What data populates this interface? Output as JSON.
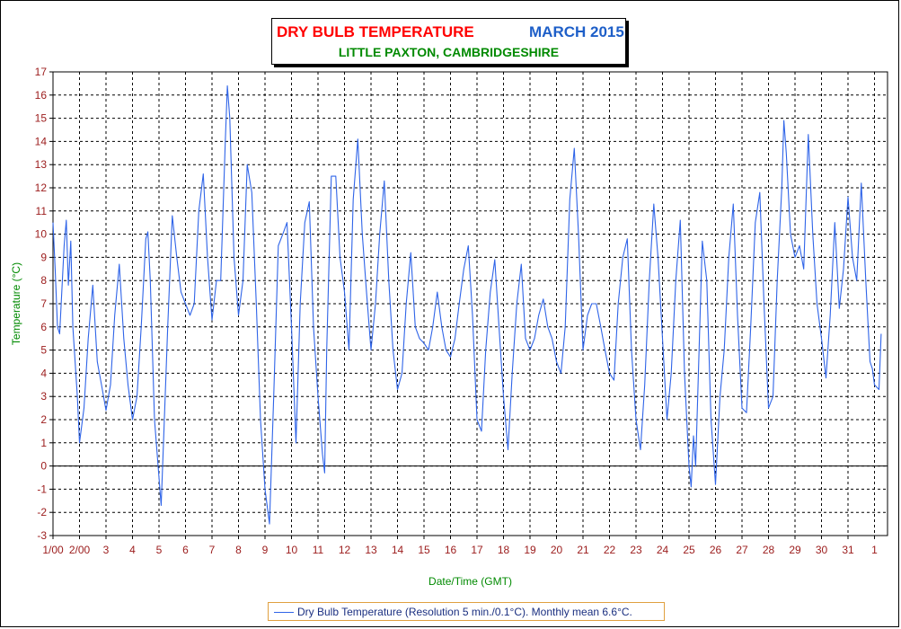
{
  "title": {
    "main": "DRY BULB TEMPERATURE",
    "month": "MARCH 2015",
    "location": "LITTLE PAXTON, CAMBRIDGESHIRE"
  },
  "legend": {
    "label": "Dry Bulb Temperature (Resolution 5 min./0.1°C). Monthly mean 6.6°C."
  },
  "colors": {
    "series": "#2f64e8",
    "title_main": "#ff0000",
    "title_month": "#1e5fc8",
    "title_location": "#008a00",
    "tick_labels": "#9b1b1b",
    "axis_labels": "#008a00",
    "legend_border": "#e0a040"
  },
  "chart_data": {
    "type": "line",
    "title": "DRY BULB TEMPERATURE    MARCH 2015",
    "subtitle": "LITTLE PAXTON, CAMBRIDGESHIRE",
    "xlabel": "Date/Time (GMT)",
    "ylabel": "Temperature (°C)",
    "ylim": [
      -3,
      17
    ],
    "xlim": [
      1,
      32
    ],
    "yticks": [
      -3,
      -2,
      -1,
      0,
      1,
      2,
      3,
      4,
      5,
      6,
      7,
      8,
      9,
      10,
      11,
      12,
      13,
      14,
      15,
      16,
      17
    ],
    "xticks": [
      {
        "x": 1,
        "label": "1/00"
      },
      {
        "x": 2,
        "label": "2/00"
      },
      {
        "x": 3,
        "label": "3"
      },
      {
        "x": 4,
        "label": "4"
      },
      {
        "x": 5,
        "label": "5"
      },
      {
        "x": 6,
        "label": "6"
      },
      {
        "x": 7,
        "label": "7"
      },
      {
        "x": 8,
        "label": "8"
      },
      {
        "x": 9,
        "label": "9"
      },
      {
        "x": 10,
        "label": "10"
      },
      {
        "x": 11,
        "label": "11"
      },
      {
        "x": 12,
        "label": "12"
      },
      {
        "x": 13,
        "label": "13"
      },
      {
        "x": 14,
        "label": "14"
      },
      {
        "x": 15,
        "label": "15"
      },
      {
        "x": 16,
        "label": "16"
      },
      {
        "x": 17,
        "label": "17"
      },
      {
        "x": 18,
        "label": "18"
      },
      {
        "x": 19,
        "label": "19"
      },
      {
        "x": 20,
        "label": "20"
      },
      {
        "x": 21,
        "label": "21"
      },
      {
        "x": 22,
        "label": "22"
      },
      {
        "x": 23,
        "label": "23"
      },
      {
        "x": 24,
        "label": "24"
      },
      {
        "x": 25,
        "label": "25"
      },
      {
        "x": 26,
        "label": "26"
      },
      {
        "x": 27,
        "label": "27"
      },
      {
        "x": 28,
        "label": "28"
      },
      {
        "x": 29,
        "label": "29"
      },
      {
        "x": 30,
        "label": "30"
      },
      {
        "x": 31,
        "label": "31"
      },
      {
        "x": 32,
        "label": "1"
      }
    ],
    "grid": true,
    "zero_line": true,
    "legend_position": "bottom",
    "series": [
      {
        "name": "Dry Bulb Temperature (Resolution 5 min./0.1°C). Monthly mean 6.6°C.",
        "color": "#2f64e8",
        "points": [
          [
            1.0,
            10.5
          ],
          [
            1.08,
            8.5
          ],
          [
            1.17,
            6.0
          ],
          [
            1.25,
            5.7
          ],
          [
            1.42,
            9.5
          ],
          [
            1.5,
            10.6
          ],
          [
            1.58,
            7.8
          ],
          [
            1.67,
            9.7
          ],
          [
            1.75,
            6.0
          ],
          [
            1.92,
            3.0
          ],
          [
            2.0,
            1.0
          ],
          [
            2.17,
            2.5
          ],
          [
            2.33,
            5.5
          ],
          [
            2.5,
            7.8
          ],
          [
            2.67,
            4.5
          ],
          [
            2.83,
            3.5
          ],
          [
            3.0,
            2.4
          ],
          [
            3.17,
            3.5
          ],
          [
            3.33,
            6.5
          ],
          [
            3.5,
            8.7
          ],
          [
            3.67,
            5.5
          ],
          [
            3.83,
            3.5
          ],
          [
            4.0,
            2.0
          ],
          [
            4.17,
            3.0
          ],
          [
            4.33,
            6.0
          ],
          [
            4.5,
            9.8
          ],
          [
            4.58,
            10.1
          ],
          [
            4.67,
            8.0
          ],
          [
            4.83,
            2.0
          ],
          [
            5.0,
            -0.5
          ],
          [
            5.08,
            -1.7
          ],
          [
            5.17,
            1.0
          ],
          [
            5.33,
            6.0
          ],
          [
            5.5,
            10.8
          ],
          [
            5.67,
            9.0
          ],
          [
            5.83,
            7.5
          ],
          [
            6.0,
            7.0
          ],
          [
            6.17,
            6.5
          ],
          [
            6.33,
            7.0
          ],
          [
            6.5,
            11.0
          ],
          [
            6.67,
            12.6
          ],
          [
            6.83,
            9.0
          ],
          [
            7.0,
            6.3
          ],
          [
            7.17,
            8.0
          ],
          [
            7.33,
            8.0
          ],
          [
            7.5,
            14.0
          ],
          [
            7.58,
            16.4
          ],
          [
            7.67,
            15.0
          ],
          [
            7.83,
            9.0
          ],
          [
            8.0,
            6.5
          ],
          [
            8.17,
            8.0
          ],
          [
            8.33,
            13.0
          ],
          [
            8.5,
            11.8
          ],
          [
            8.67,
            7.0
          ],
          [
            8.83,
            2.0
          ],
          [
            9.0,
            -1.0
          ],
          [
            9.17,
            -2.5
          ],
          [
            9.33,
            3.0
          ],
          [
            9.5,
            9.5
          ],
          [
            9.67,
            10.0
          ],
          [
            9.83,
            10.5
          ],
          [
            10.0,
            6.0
          ],
          [
            10.17,
            1.0
          ],
          [
            10.33,
            7.0
          ],
          [
            10.5,
            10.5
          ],
          [
            10.67,
            11.4
          ],
          [
            10.83,
            6.0
          ],
          [
            11.0,
            3.0
          ],
          [
            11.17,
            0.5
          ],
          [
            11.25,
            -0.3
          ],
          [
            11.33,
            5.0
          ],
          [
            11.5,
            12.5
          ],
          [
            11.67,
            12.5
          ],
          [
            11.83,
            9.0
          ],
          [
            12.0,
            7.5
          ],
          [
            12.17,
            5.0
          ],
          [
            12.33,
            11.5
          ],
          [
            12.5,
            14.1
          ],
          [
            12.67,
            10.0
          ],
          [
            12.83,
            7.5
          ],
          [
            13.0,
            5.0
          ],
          [
            13.17,
            7.0
          ],
          [
            13.33,
            10.0
          ],
          [
            13.5,
            12.3
          ],
          [
            13.67,
            8.0
          ],
          [
            13.83,
            5.0
          ],
          [
            14.0,
            3.3
          ],
          [
            14.17,
            4.0
          ],
          [
            14.33,
            7.0
          ],
          [
            14.5,
            9.2
          ],
          [
            14.67,
            6.0
          ],
          [
            14.83,
            5.5
          ],
          [
            15.0,
            5.3
          ],
          [
            15.17,
            5.0
          ],
          [
            15.33,
            6.0
          ],
          [
            15.5,
            7.5
          ],
          [
            15.67,
            6.0
          ],
          [
            15.83,
            5.0
          ],
          [
            16.0,
            4.7
          ],
          [
            16.17,
            5.5
          ],
          [
            16.33,
            7.0
          ],
          [
            16.5,
            8.5
          ],
          [
            16.67,
            9.5
          ],
          [
            16.83,
            6.5
          ],
          [
            17.0,
            2.0
          ],
          [
            17.17,
            1.5
          ],
          [
            17.33,
            5.0
          ],
          [
            17.5,
            7.5
          ],
          [
            17.67,
            8.9
          ],
          [
            17.83,
            6.0
          ],
          [
            18.0,
            3.0
          ],
          [
            18.17,
            0.7
          ],
          [
            18.33,
            4.0
          ],
          [
            18.5,
            7.0
          ],
          [
            18.67,
            8.7
          ],
          [
            18.83,
            5.5
          ],
          [
            19.0,
            5.0
          ],
          [
            19.17,
            5.5
          ],
          [
            19.33,
            6.5
          ],
          [
            19.5,
            7.2
          ],
          [
            19.67,
            6.0
          ],
          [
            19.83,
            5.5
          ],
          [
            20.0,
            4.5
          ],
          [
            20.17,
            4.0
          ],
          [
            20.33,
            6.0
          ],
          [
            20.5,
            11.5
          ],
          [
            20.67,
            13.7
          ],
          [
            20.83,
            10.0
          ],
          [
            21.0,
            5.0
          ],
          [
            21.17,
            6.5
          ],
          [
            21.33,
            7.0
          ],
          [
            21.5,
            7.0
          ],
          [
            21.67,
            6.0
          ],
          [
            21.83,
            5.0
          ],
          [
            22.0,
            4.0
          ],
          [
            22.17,
            3.7
          ],
          [
            22.33,
            7.0
          ],
          [
            22.5,
            9.0
          ],
          [
            22.67,
            9.8
          ],
          [
            22.83,
            5.0
          ],
          [
            23.0,
            2.0
          ],
          [
            23.17,
            0.7
          ],
          [
            23.33,
            3.5
          ],
          [
            23.5,
            8.0
          ],
          [
            23.67,
            11.3
          ],
          [
            23.83,
            9.0
          ],
          [
            24.0,
            5.5
          ],
          [
            24.17,
            2.0
          ],
          [
            24.33,
            4.0
          ],
          [
            24.5,
            8.0
          ],
          [
            24.67,
            10.6
          ],
          [
            24.83,
            4.0
          ],
          [
            25.0,
            0.0
          ],
          [
            25.08,
            -0.9
          ],
          [
            25.17,
            1.3
          ],
          [
            25.25,
            0.0
          ],
          [
            25.33,
            3.0
          ],
          [
            25.5,
            9.7
          ],
          [
            25.67,
            8.0
          ],
          [
            25.83,
            2.0
          ],
          [
            26.0,
            -0.8
          ],
          [
            26.17,
            3.0
          ],
          [
            26.33,
            5.0
          ],
          [
            26.5,
            9.0
          ],
          [
            26.67,
            11.3
          ],
          [
            26.83,
            6.5
          ],
          [
            27.0,
            2.5
          ],
          [
            27.17,
            2.3
          ],
          [
            27.33,
            6.0
          ],
          [
            27.5,
            10.5
          ],
          [
            27.67,
            11.8
          ],
          [
            27.83,
            7.0
          ],
          [
            28.0,
            2.5
          ],
          [
            28.17,
            3.0
          ],
          [
            28.33,
            8.0
          ],
          [
            28.5,
            12.0
          ],
          [
            28.58,
            14.9
          ],
          [
            28.67,
            13.5
          ],
          [
            28.83,
            10.0
          ],
          [
            29.0,
            9.0
          ],
          [
            29.17,
            9.5
          ],
          [
            29.33,
            8.5
          ],
          [
            29.5,
            14.3
          ],
          [
            29.67,
            10.0
          ],
          [
            29.83,
            7.0
          ],
          [
            30.0,
            5.5
          ],
          [
            30.17,
            3.8
          ],
          [
            30.33,
            6.5
          ],
          [
            30.5,
            10.5
          ],
          [
            30.67,
            6.8
          ],
          [
            30.83,
            8.5
          ],
          [
            31.0,
            11.6
          ],
          [
            31.17,
            9.0
          ],
          [
            31.33,
            8.0
          ],
          [
            31.5,
            12.2
          ],
          [
            31.67,
            8.0
          ],
          [
            31.83,
            4.5
          ],
          [
            31.92,
            4.2
          ],
          [
            32.0,
            3.5
          ],
          [
            32.17,
            3.3
          ],
          [
            32.25,
            5.7
          ]
        ]
      }
    ]
  }
}
